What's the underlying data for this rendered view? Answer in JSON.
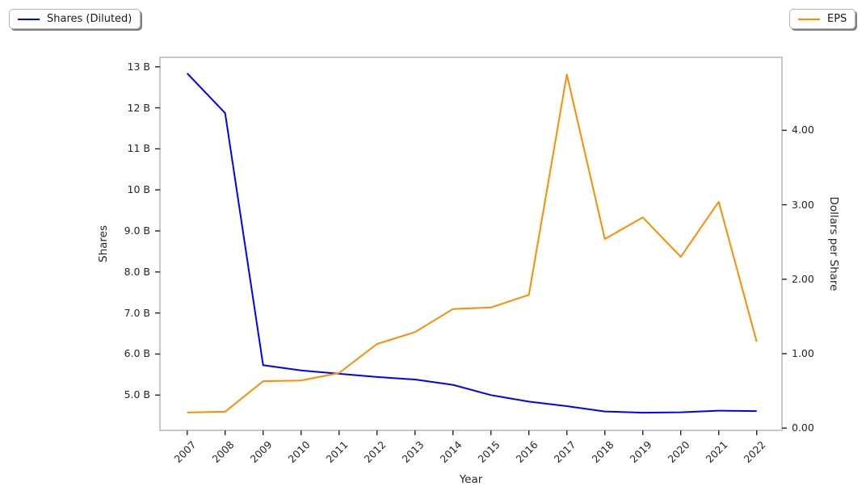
{
  "figure": {
    "xlabel": "Year",
    "ylabel_left": "Shares",
    "ylabel_right": "Dollars per Share"
  },
  "legends": [
    {
      "label": "Shares (Diluted)",
      "color": "#0000ff",
      "position": "top-left"
    },
    {
      "label": "EPS",
      "color": "#ff8c00",
      "position": "top-right"
    }
  ],
  "chart_data": {
    "type": "line",
    "title": "",
    "xlabel": "Year",
    "x": [
      2007,
      2008,
      2009,
      2010,
      2011,
      2012,
      2013,
      2014,
      2015,
      2016,
      2017,
      2018,
      2019,
      2020,
      2021,
      2022
    ],
    "x_tick_labels": [
      "2007",
      "2008",
      "2009",
      "2010",
      "2011",
      "2012",
      "2013",
      "2014",
      "2015",
      "2016",
      "2017",
      "2018",
      "2019",
      "2020",
      "2021",
      "2022"
    ],
    "xlim": [
      2006.28,
      2022.67
    ],
    "grid": false,
    "legend_position": "two fancybox shadowed legends at figure top-left (Shares) and top-right (EPS)",
    "series": [
      {
        "name": "Shares (Diluted)",
        "axis": "left",
        "color": "#0000ff",
        "unit": "billions of shares",
        "values": [
          12.84,
          11.87,
          5.73,
          5.6,
          5.52,
          5.44,
          5.38,
          5.25,
          5.0,
          4.84,
          4.73,
          4.6,
          4.57,
          4.58,
          4.62,
          4.61
        ]
      },
      {
        "name": "EPS",
        "axis": "right",
        "color": "#ff8c00",
        "unit": "dollars per share",
        "values": [
          0.21,
          0.22,
          0.63,
          0.64,
          0.74,
          1.13,
          1.29,
          1.6,
          1.62,
          1.79,
          4.75,
          2.54,
          2.83,
          2.3,
          3.04,
          1.16
        ]
      }
    ],
    "axes": {
      "left": {
        "label": "Shares",
        "tick_values": [
          13,
          12,
          11,
          10,
          9,
          8,
          7,
          6,
          5
        ],
        "tick_labels": [
          "13 B",
          "12 B",
          "11 B",
          "10 B",
          "9.0 B",
          "8.0 B",
          "7.0 B",
          "6.0 B",
          "5.0 B"
        ],
        "lim": [
          4.14,
          13.23
        ]
      },
      "right": {
        "label": "Dollars per Share",
        "tick_values": [
          4,
          3,
          2,
          1,
          0
        ],
        "tick_labels": [
          "4.00",
          "3.00",
          "2.00",
          "1.00",
          "0.00"
        ],
        "lim": [
          -0.03,
          4.98
        ]
      }
    }
  }
}
